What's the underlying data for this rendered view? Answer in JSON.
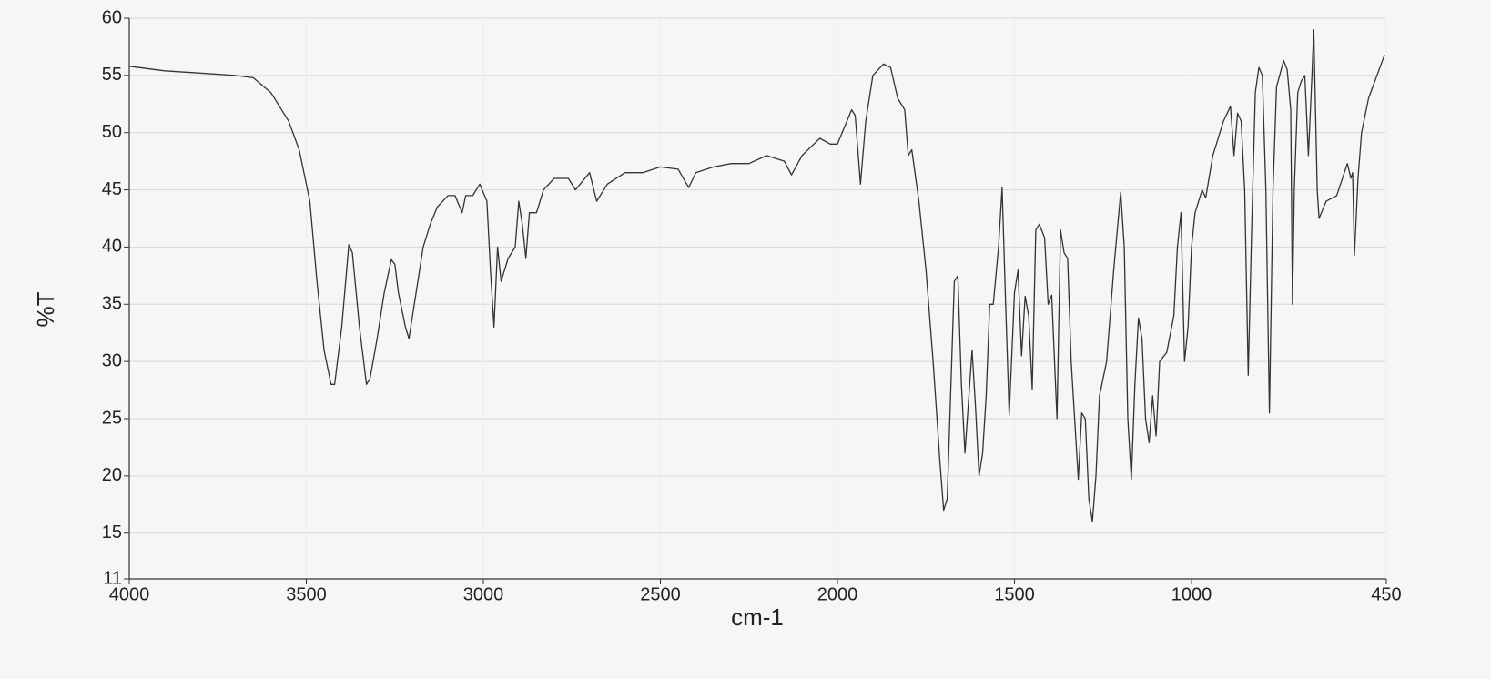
{
  "chart_data": {
    "type": "line",
    "xlabel": "cm-1",
    "ylabel": "%T",
    "xlim": [
      4000,
      450
    ],
    "ylim": [
      11,
      60
    ],
    "xticks": [
      4000,
      3500,
      3000,
      2500,
      2000,
      1500,
      1000,
      450
    ],
    "yticks": [
      11,
      15,
      20,
      25,
      30,
      35,
      40,
      45,
      50,
      55,
      60
    ],
    "grid": true,
    "color": "#333333",
    "x": [
      4000,
      3900,
      3800,
      3700,
      3650,
      3600,
      3550,
      3520,
      3490,
      3470,
      3450,
      3430,
      3420,
      3400,
      3380,
      3370,
      3350,
      3330,
      3320,
      3300,
      3280,
      3260,
      3250,
      3240,
      3220,
      3210,
      3190,
      3170,
      3150,
      3130,
      3100,
      3080,
      3060,
      3050,
      3030,
      3010,
      2990,
      2980,
      2970,
      2960,
      2950,
      2930,
      2910,
      2900,
      2890,
      2880,
      2870,
      2850,
      2830,
      2800,
      2760,
      2740,
      2700,
      2680,
      2650,
      2600,
      2550,
      2500,
      2450,
      2420,
      2400,
      2350,
      2300,
      2250,
      2200,
      2150,
      2130,
      2100,
      2050,
      2020,
      2000,
      1980,
      1960,
      1950,
      1935,
      1920,
      1900,
      1870,
      1850,
      1830,
      1810,
      1800,
      1790,
      1770,
      1750,
      1730,
      1710,
      1700,
      1690,
      1670,
      1660,
      1650,
      1640,
      1620,
      1610,
      1600,
      1590,
      1580,
      1570,
      1560,
      1545,
      1535,
      1525,
      1515,
      1500,
      1490,
      1480,
      1470,
      1460,
      1450,
      1440,
      1430,
      1415,
      1405,
      1395,
      1380,
      1370,
      1360,
      1350,
      1340,
      1320,
      1310,
      1300,
      1290,
      1280,
      1270,
      1260,
      1240,
      1220,
      1200,
      1190,
      1180,
      1170,
      1160,
      1150,
      1140,
      1130,
      1120,
      1110,
      1100,
      1090,
      1070,
      1050,
      1040,
      1030,
      1020,
      1010,
      1000,
      990,
      970,
      960,
      940,
      910,
      890,
      880,
      870,
      860,
      850,
      840,
      830,
      820,
      810,
      800,
      790,
      780,
      770,
      760,
      740,
      730,
      720,
      715,
      710,
      700,
      690,
      680,
      670,
      660,
      655,
      645,
      640,
      620,
      590,
      560,
      550,
      545,
      540,
      530,
      520,
      500,
      455
    ],
    "values": [
      55.8,
      55.4,
      55.2,
      55.0,
      54.8,
      53.5,
      51,
      48.5,
      44,
      37,
      31,
      28,
      28,
      33,
      40.2,
      39.5,
      33,
      28,
      28.5,
      32,
      36,
      38.9,
      38.5,
      36,
      33,
      32,
      36,
      40,
      42,
      43.5,
      44.5,
      44.5,
      43,
      44.5,
      44.5,
      45.5,
      44,
      38,
      33,
      40,
      37,
      39,
      40,
      44,
      42,
      39,
      43,
      43,
      45,
      46,
      46,
      45,
      46.5,
      44,
      45.5,
      46.5,
      46.5,
      47,
      46.8,
      45.2,
      46.5,
      47,
      47.3,
      47.3,
      48,
      47.5,
      46.3,
      48,
      49.5,
      49,
      49,
      50.5,
      52,
      51.5,
      45.5,
      51,
      55,
      56,
      55.7,
      53,
      52,
      48,
      48.5,
      44,
      38,
      30,
      21,
      17,
      18,
      37,
      37.5,
      28,
      22,
      31,
      26,
      20,
      22,
      27,
      35,
      35,
      40,
      45.2,
      35,
      25.3,
      36,
      38,
      30.5,
      35.7,
      34,
      27.6,
      41.5,
      42,
      40.8,
      35,
      35.8,
      25,
      41.5,
      39.5,
      39,
      30,
      19.7,
      25.5,
      25,
      18,
      16,
      20,
      27,
      30,
      38,
      44.8,
      40,
      25,
      19.7,
      28,
      33.8,
      32,
      25,
      22.9,
      27,
      23.5,
      30,
      30.8,
      34,
      40,
      43,
      30,
      33,
      40,
      43,
      45,
      44.3,
      48,
      51,
      52.3,
      48,
      51.7,
      51,
      45,
      28.8,
      42,
      53.5,
      55.7,
      55,
      45,
      25.5,
      45,
      54,
      56.3,
      55.5,
      52,
      35,
      45,
      53.5,
      54.5,
      55,
      48,
      55,
      59,
      45,
      42.5,
      44,
      44.5,
      47.3,
      46,
      46.5,
      39.3,
      46,
      50,
      53,
      56.8
    ]
  }
}
